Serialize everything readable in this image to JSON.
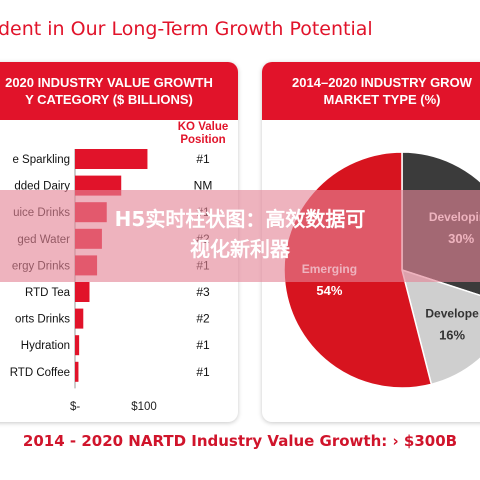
{
  "page": {
    "title": "fident in Our Long-Term Growth Potential",
    "footer": "2014 - 2020 NARTD Industry Value Growth: › $300B"
  },
  "overlay": {
    "line1": "H5实时柱状图：高效数据可",
    "line2": "视化新利器",
    "color": "#e48496"
  },
  "colors": {
    "accent": "#e1132a",
    "pie_developing": "#3b3b3b",
    "pie_developed": "#cfcfcf",
    "pie_emerging": "#d7141f"
  },
  "chart_data": [
    {
      "type": "bar",
      "orientation": "horizontal",
      "title_lines": [
        "2020 INDUSTRY VALUE GROWTH",
        "Y CATEGORY ($ BILLIONS)"
      ],
      "table_header": [
        "KO Value",
        "Position"
      ],
      "categories": [
        "e Sparkling",
        "dded Dairy",
        "uice Drinks",
        "ged Water",
        "ergy Drinks",
        "RTD Tea",
        "orts Drinks",
        "Hydration",
        "RTD Coffee"
      ],
      "values": [
        105,
        67,
        46,
        39,
        32,
        21,
        12,
        6,
        5
      ],
      "positions": [
        "#1",
        "NM",
        "#1",
        "#2",
        "#1",
        "#3",
        "#2",
        "#1",
        "#1"
      ],
      "x_ticks": [
        "$-",
        "$100"
      ],
      "xlim": [
        0,
        100
      ]
    },
    {
      "type": "pie",
      "title_lines": [
        "2014–2020 INDUSTRY GROW",
        "MARKET TYPE (%)"
      ],
      "slices": [
        {
          "label": "Developing",
          "value": 30,
          "pct": "30%",
          "color": "#3b3b3b"
        },
        {
          "label": "Develope",
          "value": 16,
          "pct": "16%",
          "color": "#cfcfcf"
        },
        {
          "label": "Emerging",
          "value": 54,
          "pct": "54%",
          "color": "#d7141f"
        }
      ]
    }
  ]
}
